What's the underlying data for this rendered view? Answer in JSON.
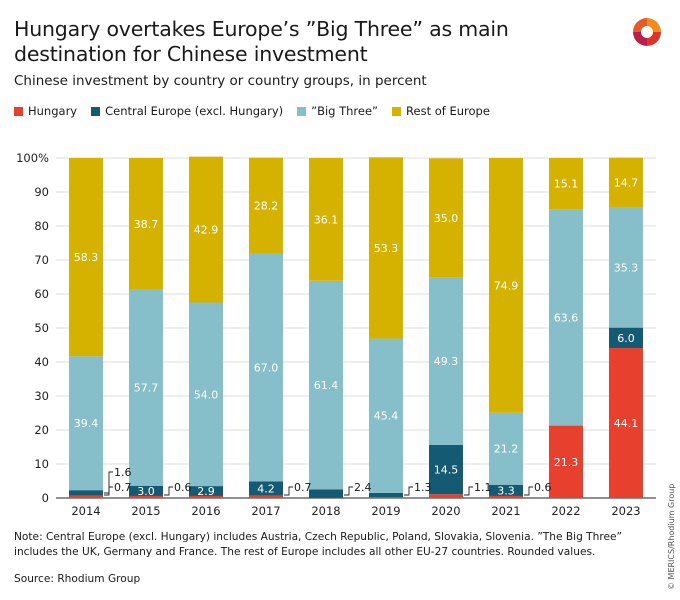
{
  "title": "Hungary overtakes Europe’s ”Big Three” as main destination for Chinese investment",
  "subtitle": "Chinese investment by country or country groups, in percent",
  "legend": [
    {
      "label": "Hungary",
      "color": "#e8402e"
    },
    {
      "label": "Central Europe (excl. Hungary)",
      "color": "#155a73"
    },
    {
      "label": "”Big Three”",
      "color": "#86bfca"
    },
    {
      "label": "Rest of Europe",
      "color": "#d6b200"
    }
  ],
  "note": "Note: Central Europe (excl. Hungary) includes Austria, Czech Republic, Poland, Slovakia, Slovenia. ”The Big Three” includes the UK, Germany and France. The rest of Europe includes all other EU-27 countries. Rounded values.",
  "source": "Source: Rhodium Group",
  "copyright": "© MERICS/Rhodium Group",
  "chart_data": {
    "type": "bar",
    "stacked": true,
    "categories": [
      "2014",
      "2015",
      "2016",
      "2017",
      "2018",
      "2019",
      "2020",
      "2021",
      "2022",
      "2023"
    ],
    "ylim": [
      0,
      100
    ],
    "yticks": [
      "0",
      "10",
      "20",
      "30",
      "40",
      "50",
      "60",
      "70",
      "80",
      "90",
      "100%"
    ],
    "series": [
      {
        "name": "Hungary",
        "color": "#e8402e",
        "values": [
          0.7,
          0.6,
          0.6,
          0.7,
          0.1,
          0.2,
          1.1,
          0.6,
          21.3,
          44.1
        ],
        "labels": [
          "",
          "",
          "",
          "",
          "",
          "",
          "",
          "",
          "21.3",
          "44.1"
        ]
      },
      {
        "name": "Central Europe (excl. Hungary)",
        "color": "#155a73",
        "values": [
          1.6,
          3.0,
          2.9,
          4.2,
          2.4,
          1.3,
          14.5,
          3.3,
          0.0,
          6.0
        ],
        "labels": [
          "",
          "3.0",
          "2.9",
          "4.2",
          "",
          "",
          "14.5",
          "3.3",
          "",
          "6.0"
        ]
      },
      {
        "name": "”Big Three”",
        "color": "#86bfca",
        "values": [
          39.4,
          57.7,
          54.0,
          67.0,
          61.4,
          45.4,
          49.3,
          21.2,
          63.6,
          35.3
        ],
        "labels": [
          "39.4",
          "57.7",
          "54.0",
          "67.0",
          "61.4",
          "45.4",
          "49.3",
          "21.2",
          "63.6",
          "35.3"
        ]
      },
      {
        "name": "Rest of Europe",
        "color": "#d6b200",
        "values": [
          58.3,
          38.7,
          42.9,
          28.2,
          36.1,
          53.3,
          35.0,
          74.9,
          15.1,
          14.7
        ],
        "labels": [
          "58.3",
          "38.7",
          "42.9",
          "28.2",
          "36.1",
          "53.3",
          "35.0",
          "74.9",
          "15.1",
          "14.7"
        ]
      }
    ],
    "callouts": [
      {
        "category": "2014",
        "label": "1.6"
      },
      {
        "category": "2014",
        "label": "0.7"
      },
      {
        "category": "2015",
        "label": "0.6"
      },
      {
        "category": "2017",
        "label": "0.7"
      },
      {
        "category": "2018",
        "label": "2.4"
      },
      {
        "category": "2019",
        "label": "1.3"
      },
      {
        "category": "2020",
        "label": "1.1"
      },
      {
        "category": "2021",
        "label": "0.6"
      }
    ]
  }
}
